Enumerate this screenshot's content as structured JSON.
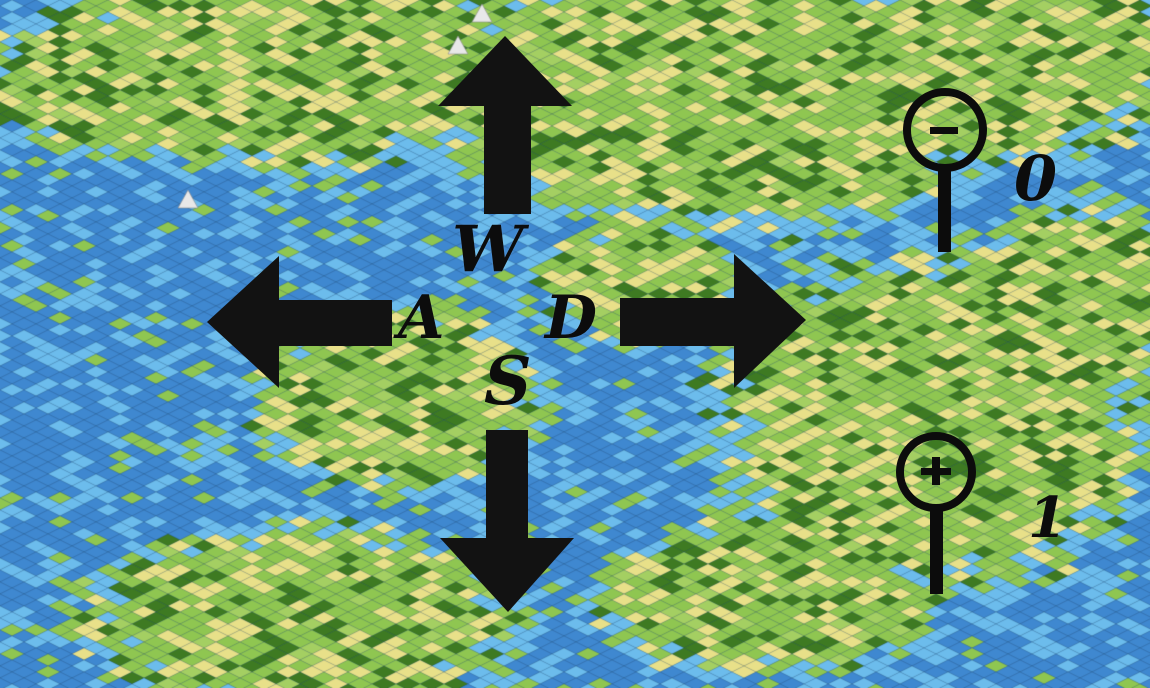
{
  "scene": "isometric-terrain-map",
  "terrain_colors": {
    "ocean": "#3f88d0",
    "shallow_water": "#6cbcec",
    "grassland": "#8fc651",
    "plains": "#e8e089",
    "forest": "#3e7a22",
    "hills": "#a4cf62",
    "mountain": "#e8e8e8"
  },
  "controls": {
    "move_up": {
      "key": "W",
      "icon": "arrow-up-icon"
    },
    "move_left": {
      "key": "A",
      "icon": "arrow-left-icon"
    },
    "move_down": {
      "key": "S",
      "icon": "arrow-down-icon"
    },
    "move_right": {
      "key": "D",
      "icon": "arrow-right-icon"
    },
    "zoom_out": {
      "key": "0",
      "icon": "zoom-out-icon"
    },
    "zoom_in": {
      "key": "1",
      "icon": "zoom-in-icon"
    }
  }
}
